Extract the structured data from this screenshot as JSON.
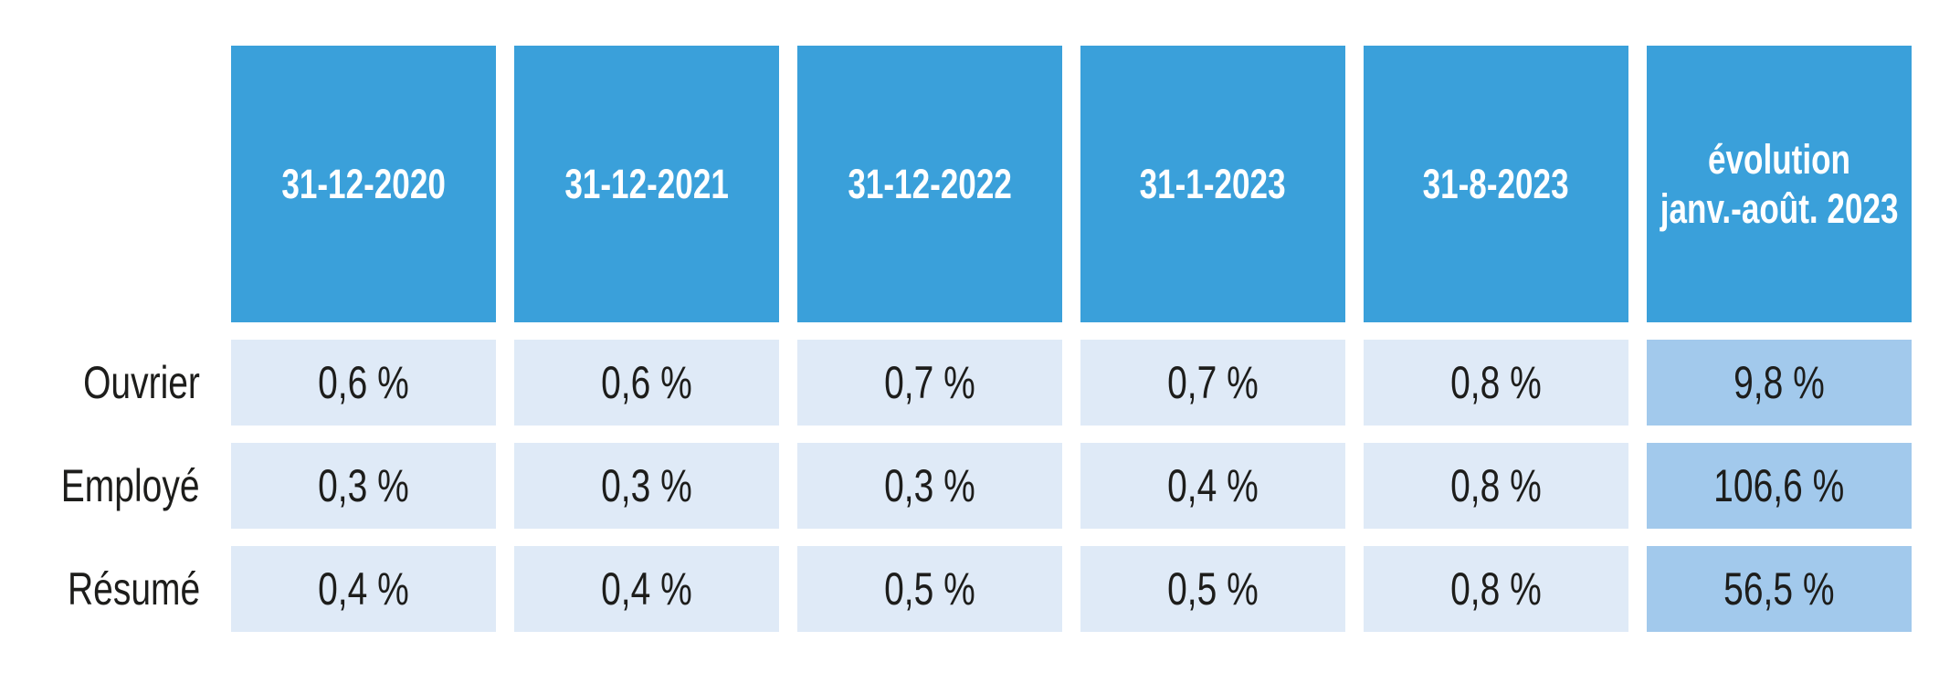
{
  "chart_data": {
    "type": "table",
    "columns": [
      "31-12-2020",
      "31-12-2021",
      "31-12-2022",
      "31-1-2023",
      "31-8-2023",
      "évolution janv.-août. 2023"
    ],
    "row_labels": [
      "Ouvrier",
      "Employé",
      "Résumé"
    ],
    "cell_values_text": [
      [
        "0,6 %",
        "0,6 %",
        "0,7 %",
        "0,7 %",
        "0,8 %",
        "9,8 %"
      ],
      [
        "0,3 %",
        "0,3 %",
        "0,3 %",
        "0,4 %",
        "0,8 %",
        "106,6 %"
      ],
      [
        "0,4 %",
        "0,4 %",
        "0,5 %",
        "0,5 %",
        "0,8 %",
        "56,5 %"
      ]
    ],
    "cell_values_numeric_pct": [
      [
        0.6,
        0.6,
        0.7,
        0.7,
        0.8,
        9.8
      ],
      [
        0.3,
        0.3,
        0.3,
        0.4,
        0.8,
        106.6
      ],
      [
        0.4,
        0.4,
        0.5,
        0.5,
        0.8,
        56.5
      ]
    ],
    "title": "",
    "notes": "last column (évolution janv.-août. 2023) highlighted in darker blue"
  },
  "table": {
    "headers": [
      {
        "line1": "31-12-2020",
        "line2": ""
      },
      {
        "line1": "31-12-2021",
        "line2": ""
      },
      {
        "line1": "31-12-2022",
        "line2": ""
      },
      {
        "line1": "31-1-2023",
        "line2": ""
      },
      {
        "line1": "31-8-2023",
        "line2": ""
      },
      {
        "line1": "évolution",
        "line2": "janv.-août. 2023"
      }
    ],
    "rows": [
      {
        "label": "Ouvrier",
        "values": [
          "0,6 %",
          "0,6 %",
          "0,7 %",
          "0,7 %",
          "0,8 %"
        ],
        "evolution": "9,8 %"
      },
      {
        "label": "Employé",
        "values": [
          "0,3 %",
          "0,3 %",
          "0,3 %",
          "0,4 %",
          "0,8 %"
        ],
        "evolution": "106,6 %"
      },
      {
        "label": "Résumé",
        "values": [
          "0,4 %",
          "0,4 %",
          "0,5 %",
          "0,5 %",
          "0,8 %"
        ],
        "evolution": "56,5 %"
      }
    ]
  },
  "colors": {
    "header_bg": "#3aa0da",
    "header_text": "#ffffff",
    "cell_bg": "#dfeaf7",
    "evolution_cell_bg": "#a2c9ec",
    "body_text": "#1d1d1b",
    "page_bg": "#ffffff"
  }
}
